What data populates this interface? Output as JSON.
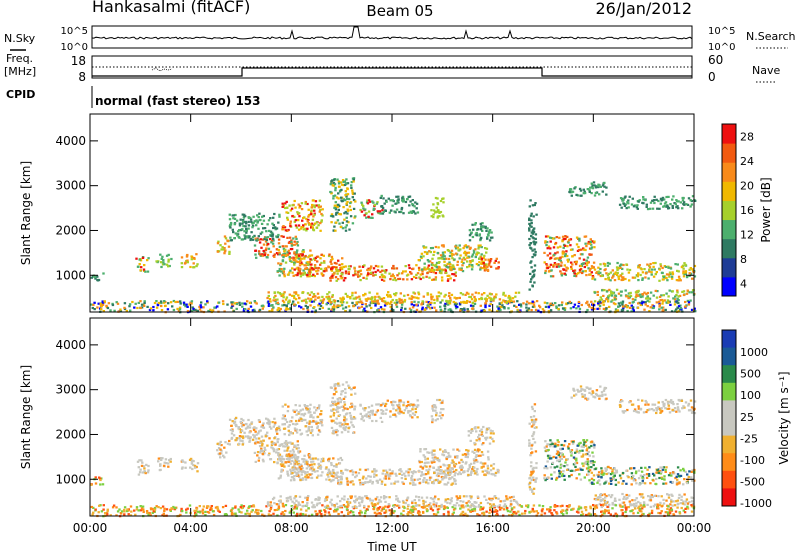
{
  "header": {
    "station": "Hankasalmi (fitACF)",
    "beam": "Beam 05",
    "date": "26/Jan/2012"
  },
  "top_panels": {
    "nsky_label": "N.Sky",
    "nsky_ticks": [
      "10^5",
      "10^0"
    ],
    "nsearch_label": "N.Search",
    "nsearch_ticks": [
      "10^5",
      "10^0"
    ],
    "freq_label_1": "Freq.",
    "freq_label_2": "[MHz]",
    "freq_ticks": [
      "18",
      "8"
    ],
    "nave_label": "Nave",
    "nave_ticks": [
      "60",
      "0"
    ],
    "cpid_label": "CPID",
    "cpid_text": "normal (fast stereo) 153"
  },
  "colors": {
    "power_scale": [
      "#0000ff",
      "#1e3c96",
      "#2f7a62",
      "#4caf6d",
      "#a6d02b",
      "#f0b800",
      "#f88a1a",
      "#f25a10",
      "#ee1010"
    ],
    "velocity_scale": [
      "#ee1010",
      "#ff5010",
      "#ff8c18",
      "#f0b030",
      "#c8c8c0",
      "#c8c8c0",
      "#7cd040",
      "#2a8a4a",
      "#1a5a96",
      "#1a3cb4"
    ]
  },
  "chart_data": [
    {
      "type": "heatmap",
      "name": "power",
      "xlabel": "",
      "ylabel": "Slant Range [km]",
      "x_ticks": [
        "00:00",
        "04:00",
        "08:00",
        "12:00",
        "16:00",
        "20:00",
        "00:00"
      ],
      "x_range_hours": [
        0,
        24
      ],
      "y_ticks": [
        1000,
        2000,
        3000,
        4000
      ],
      "ylim": [
        180,
        4600
      ],
      "colorbar_label": "Power [dB]",
      "colorbar_ticks": [
        "4",
        "8",
        "12",
        "16",
        "20",
        "24",
        "28"
      ],
      "colorbar_range": [
        0,
        30
      ]
    },
    {
      "type": "heatmap",
      "name": "velocity",
      "xlabel": "Time UT",
      "ylabel": "Slant Range [km]",
      "x_ticks": [
        "00:00",
        "04:00",
        "08:00",
        "12:00",
        "16:00",
        "20:00",
        "00:00"
      ],
      "x_range_hours": [
        0,
        24
      ],
      "y_ticks": [
        1000,
        2000,
        3000,
        4000
      ],
      "ylim": [
        180,
        4600
      ],
      "colorbar_label": "Velocity [m s⁻¹]",
      "colorbar_ticks": [
        "1000",
        "500",
        "100",
        "25",
        "-25",
        "-100",
        "-500",
        "-1000"
      ]
    }
  ]
}
